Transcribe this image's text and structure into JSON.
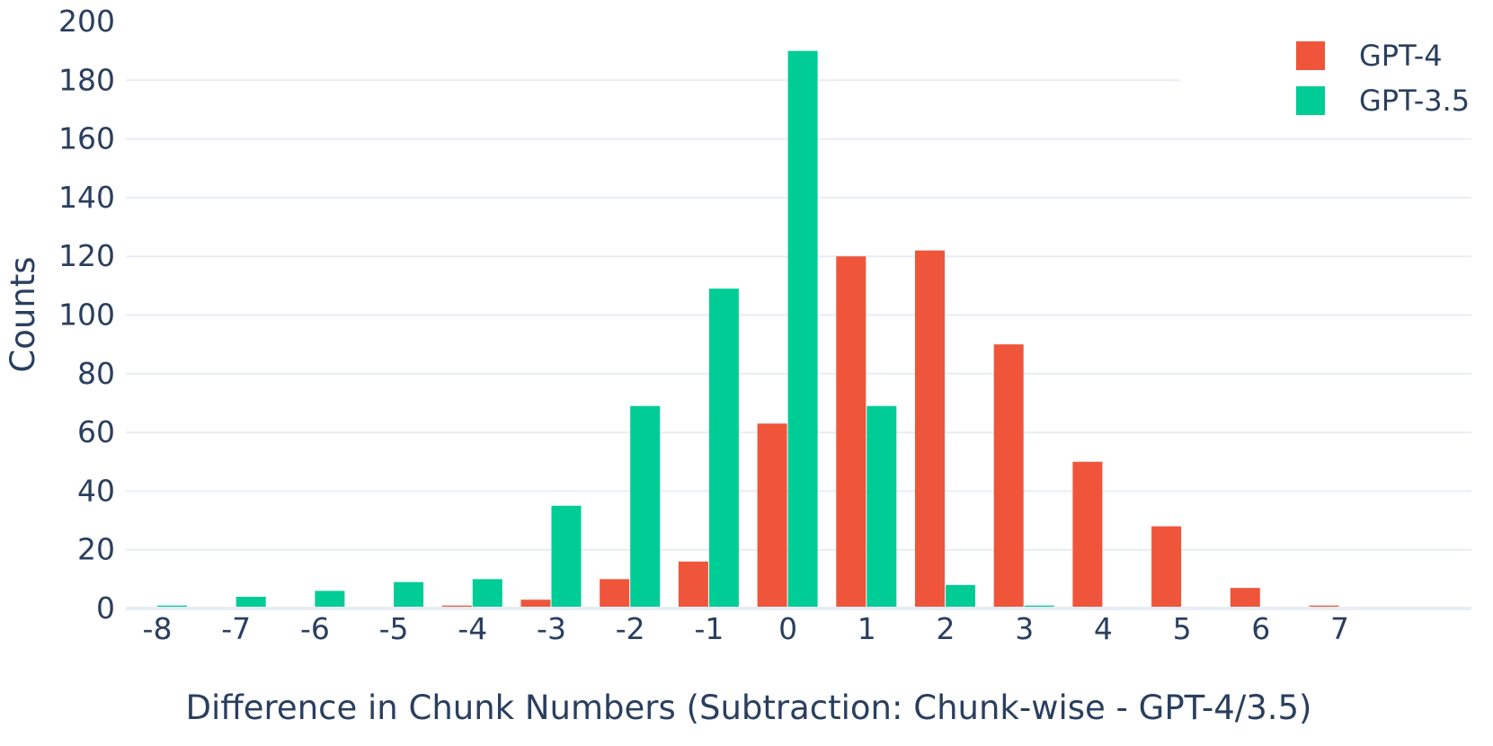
{
  "chart_data": {
    "type": "bar",
    "title": "",
    "xlabel": "Difference in Chunk Numbers (Subtraction: Chunk-wise - GPT-4/3.5)",
    "ylabel": "Counts",
    "categories": [
      "-8",
      "-7",
      "-6",
      "-5",
      "-4",
      "-3",
      "-2",
      "-1",
      "0",
      "1",
      "2",
      "3",
      "4",
      "5",
      "6",
      "7"
    ],
    "series": [
      {
        "name": "GPT-4",
        "color": "#ef553b",
        "values": [
          0,
          0,
          0,
          0,
          1,
          3,
          10,
          16,
          63,
          120,
          122,
          90,
          50,
          28,
          7,
          1
        ]
      },
      {
        "name": "GPT-3.5",
        "color": "#00cc96",
        "values": [
          1,
          4,
          6,
          9,
          10,
          35,
          69,
          109,
          190,
          69,
          8,
          1,
          0,
          0,
          0,
          0
        ]
      }
    ],
    "ylim": [
      0,
      200
    ],
    "yticks": [
      0,
      20,
      40,
      60,
      80,
      100,
      120,
      140,
      160,
      180,
      200
    ],
    "grid": true,
    "legend_position": "top-right"
  }
}
